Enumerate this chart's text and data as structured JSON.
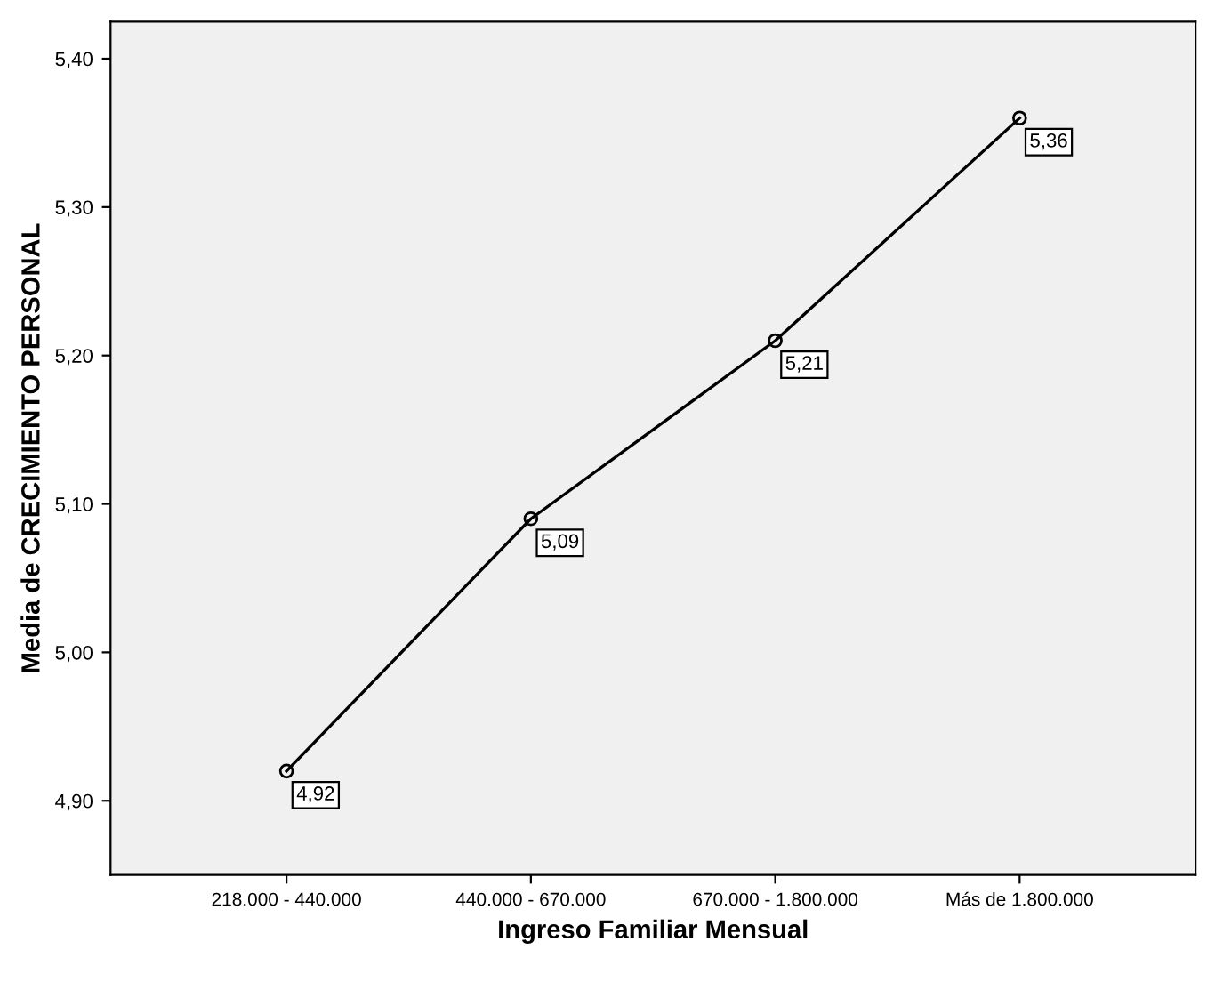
{
  "chart_data": {
    "type": "line",
    "xlabel": "Ingreso Familiar Mensual",
    "ylabel": "Media de CRECIMIENTO PERSONAL",
    "categories": [
      "218.000 - 440.000",
      "440.000 - 670.000",
      "670.000 - 1.800.000",
      "Más de 1.800.000"
    ],
    "values": [
      4.92,
      5.09,
      5.21,
      5.36
    ],
    "value_labels": [
      "4,92",
      "5,09",
      "5,21",
      "5,36"
    ],
    "color": "#000000",
    "marker": "circle",
    "line_style": "solid",
    "grid": false,
    "legend": false,
    "ylim": [
      4.85,
      5.425
    ],
    "yticks": [
      {
        "value": 4.9,
        "label": "4,90"
      },
      {
        "value": 5.0,
        "label": "5,00"
      },
      {
        "value": 5.1,
        "label": "5,10"
      },
      {
        "value": 5.2,
        "label": "5,20"
      },
      {
        "value": 5.3,
        "label": "5,30"
      },
      {
        "value": 5.4,
        "label": "5,40"
      }
    ]
  }
}
